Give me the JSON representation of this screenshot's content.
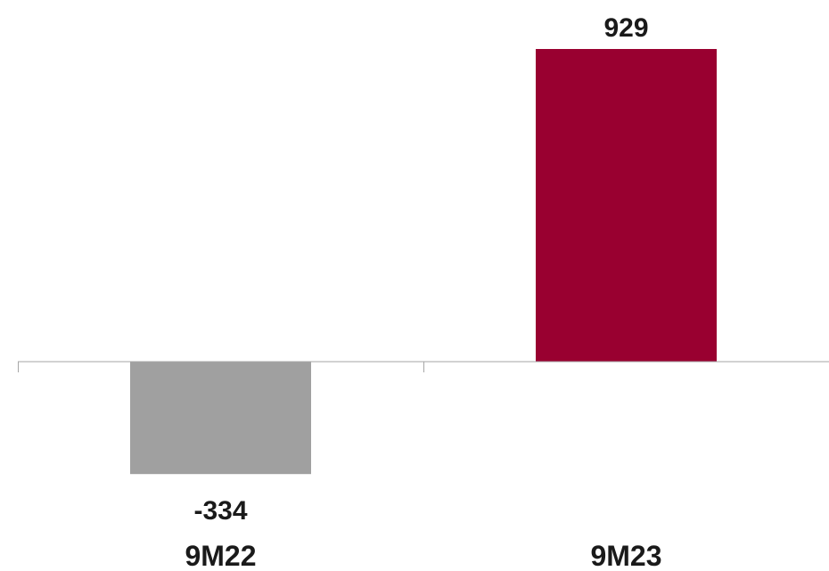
{
  "chart_data": {
    "type": "bar",
    "categories": [
      "9M22",
      "9M23"
    ],
    "values": [
      -334,
      929
    ],
    "data_labels": [
      "-334",
      "929"
    ],
    "colors": [
      "#a0a0a0",
      "#990030"
    ],
    "axis_color": "#a6a6a6",
    "ylim": [
      -450,
      1000
    ],
    "grid": false,
    "legend": "none",
    "title": "",
    "xlabel": "",
    "ylabel": ""
  }
}
